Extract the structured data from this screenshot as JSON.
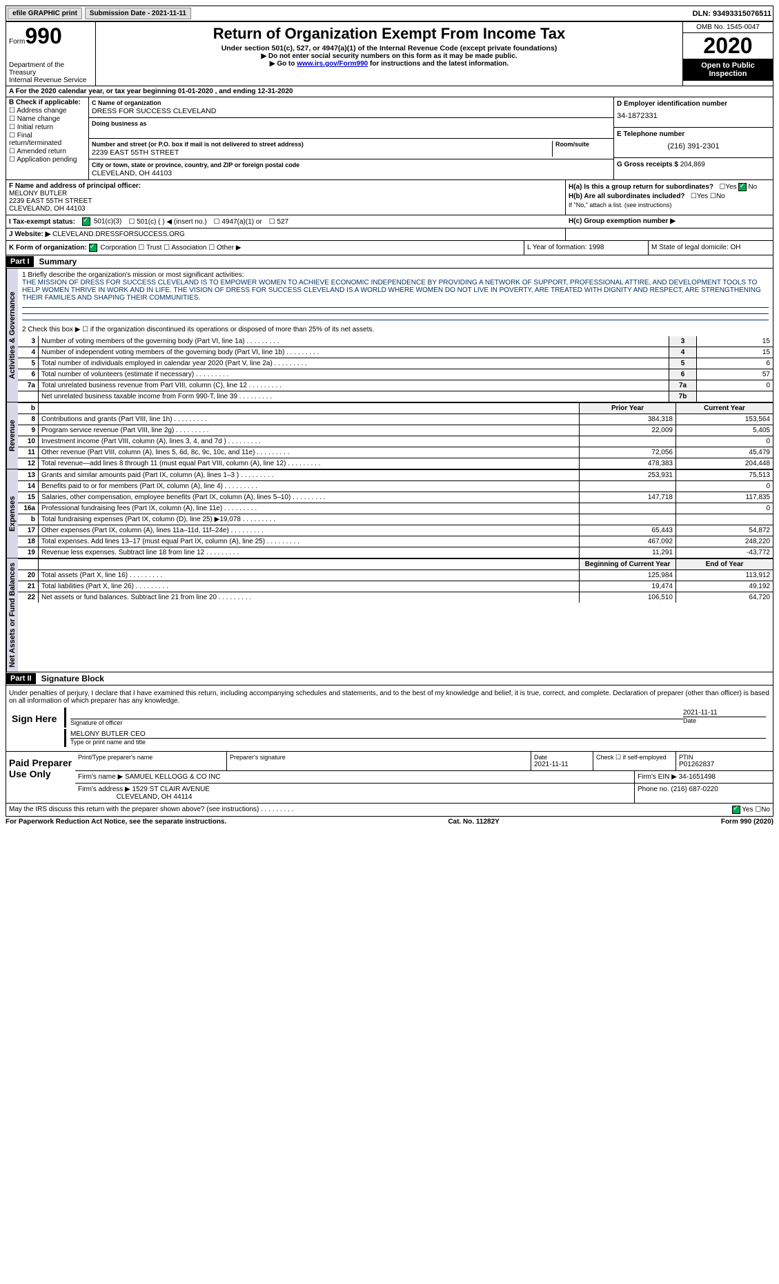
{
  "top": {
    "efile": "efile GRAPHIC print",
    "sub_date_label": "Submission Date - 2021-11-11",
    "dln": "DLN: 93493315076511"
  },
  "header": {
    "form": "Form",
    "form_num": "990",
    "dept": "Department of the Treasury\nInternal Revenue Service",
    "title": "Return of Organization Exempt From Income Tax",
    "sub": "Under section 501(c), 527, or 4947(a)(1) of the Internal Revenue Code (except private foundations)",
    "line1": "▶ Do not enter social security numbers on this form as it may be made public.",
    "line2_pre": "▶ Go to ",
    "line2_link": "www.irs.gov/Form990",
    "line2_post": " for instructions and the latest information.",
    "omb": "OMB No. 1545-0047",
    "year": "2020",
    "open": "Open to Public Inspection"
  },
  "rowA": "A   For the 2020 calendar year, or tax year beginning 01-01-2020   , and ending 12-31-2020",
  "colB": {
    "label": "B Check if applicable:",
    "opts": [
      "Address change",
      "Name change",
      "Initial return",
      "Final return/terminated",
      "Amended return",
      "Application pending"
    ]
  },
  "colC": {
    "name_label": "C Name of organization",
    "name": "DRESS FOR SUCCESS CLEVELAND",
    "dba_label": "Doing business as",
    "dba": "",
    "addr_label": "Number and street (or P.O. box if mail is not delivered to street address)",
    "addr": "2239 EAST 55TH STREET",
    "room_label": "Room/suite",
    "city_label": "City or town, state or province, country, and ZIP or foreign postal code",
    "city": "CLEVELAND, OH  44103"
  },
  "colD": {
    "ein_label": "D Employer identification number",
    "ein": "34-1872331",
    "tel_label": "E Telephone number",
    "tel": "(216) 391-2301",
    "gross_label": "G Gross receipts $",
    "gross": "204,869"
  },
  "colF": {
    "label": "F  Name and address of principal officer:",
    "name": "MELONY BUTLER",
    "addr1": "2239 EAST 55TH STREET",
    "addr2": "CLEVELAND, OH  44103"
  },
  "colH": {
    "ha": "H(a)  Is this a group return for subordinates?",
    "hb": "H(b)  Are all subordinates included?",
    "hb_note": "If \"No,\" attach a list. (see instructions)",
    "hc": "H(c)  Group exemption number ▶",
    "yes": "Yes",
    "no": "No"
  },
  "rowI": {
    "label": "I   Tax-exempt status:",
    "o1": "501(c)(3)",
    "o2": "501(c) (  ) ◀ (insert no.)",
    "o3": "4947(a)(1) or",
    "o4": "527"
  },
  "rowJ": {
    "label": "J   Website: ▶",
    "val": "CLEVELAND.DRESSFORSUCCESS.ORG"
  },
  "rowK": {
    "label": "K Form of organization:",
    "corp": "Corporation",
    "trust": "Trust",
    "assoc": "Association",
    "other": "Other ▶",
    "l": "L Year of formation: 1998",
    "m": "M State of legal domicile: OH"
  },
  "part1": {
    "title": "Part I",
    "sub": "Summary"
  },
  "mission": {
    "line1_label": "1    Briefly describe the organization's mission or most significant activities:",
    "text": "THE MISSION OF DRESS FOR SUCCESS CLEVELAND IS TO EMPOWER WOMEN TO ACHIEVE ECONOMIC INDEPENDENCE BY PROVIDING A NETWORK OF SUPPORT, PROFESSIONAL ATTIRE, AND DEVELOPMENT TOOLS TO HELP WOMEN THRIVE IN WORK AND IN LIFE. THE VISION OF DRESS FOR SUCCESS CLEVELAND IS A WORLD WHERE WOMEN DO NOT LIVE IN POVERTY, ARE TREATED WITH DIGNITY AND RESPECT, ARE STRENGTHENING THEIR FAMILIES AND SHAPING THEIR COMMUNITIES.",
    "line2": "2    Check this box ▶ ☐  if the organization discontinued its operations or disposed of more than 25% of its net assets."
  },
  "govLines": [
    {
      "n": "3",
      "d": "Number of voting members of the governing body (Part VI, line 1a)",
      "r": "3",
      "v": "15"
    },
    {
      "n": "4",
      "d": "Number of independent voting members of the governing body (Part VI, line 1b)",
      "r": "4",
      "v": "15"
    },
    {
      "n": "5",
      "d": "Total number of individuals employed in calendar year 2020 (Part V, line 2a)",
      "r": "5",
      "v": "6"
    },
    {
      "n": "6",
      "d": "Total number of volunteers (estimate if necessary)",
      "r": "6",
      "v": "57"
    },
    {
      "n": "7a",
      "d": "Total unrelated business revenue from Part VIII, column (C), line 12",
      "r": "7a",
      "v": "0"
    },
    {
      "n": "",
      "d": "Net unrelated business taxable income from Form 990-T, line 39",
      "r": "7b",
      "v": ""
    }
  ],
  "revHeader": {
    "b": "b",
    "pv": "Prior Year",
    "cv": "Current Year"
  },
  "revLines": [
    {
      "n": "8",
      "d": "Contributions and grants (Part VIII, line 1h)",
      "pv": "384,318",
      "cv": "153,564"
    },
    {
      "n": "9",
      "d": "Program service revenue (Part VIII, line 2g)",
      "pv": "22,009",
      "cv": "5,405"
    },
    {
      "n": "10",
      "d": "Investment income (Part VIII, column (A), lines 3, 4, and 7d )",
      "pv": "",
      "cv": "0"
    },
    {
      "n": "11",
      "d": "Other revenue (Part VIII, column (A), lines 5, 6d, 8c, 9c, 10c, and 11e)",
      "pv": "72,056",
      "cv": "45,479"
    },
    {
      "n": "12",
      "d": "Total revenue—add lines 8 through 11 (must equal Part VIII, column (A), line 12)",
      "pv": "478,383",
      "cv": "204,448"
    }
  ],
  "expLines": [
    {
      "n": "13",
      "d": "Grants and similar amounts paid (Part IX, column (A), lines 1–3 )",
      "pv": "253,931",
      "cv": "75,513"
    },
    {
      "n": "14",
      "d": "Benefits paid to or for members (Part IX, column (A), line 4)",
      "pv": "",
      "cv": "0"
    },
    {
      "n": "15",
      "d": "Salaries, other compensation, employee benefits (Part IX, column (A), lines 5–10)",
      "pv": "147,718",
      "cv": "117,835"
    },
    {
      "n": "16a",
      "d": "Professional fundraising fees (Part IX, column (A), line 11e)",
      "pv": "",
      "cv": "0"
    },
    {
      "n": "b",
      "d": "Total fundraising expenses (Part IX, column (D), line 25) ▶19,078",
      "pv": "",
      "cv": ""
    },
    {
      "n": "17",
      "d": "Other expenses (Part IX, column (A), lines 11a–11d, 11f–24e)",
      "pv": "65,443",
      "cv": "54,872"
    },
    {
      "n": "18",
      "d": "Total expenses. Add lines 13–17 (must equal Part IX, column (A), line 25)",
      "pv": "467,092",
      "cv": "248,220"
    },
    {
      "n": "19",
      "d": "Revenue less expenses. Subtract line 18 from line 12",
      "pv": "11,291",
      "cv": "-43,772"
    }
  ],
  "naHeader": {
    "pv": "Beginning of Current Year",
    "cv": "End of Year"
  },
  "naLines": [
    {
      "n": "20",
      "d": "Total assets (Part X, line 16)",
      "pv": "125,984",
      "cv": "113,912"
    },
    {
      "n": "21",
      "d": "Total liabilities (Part X, line 26)",
      "pv": "19,474",
      "cv": "49,192"
    },
    {
      "n": "22",
      "d": "Net assets or fund balances. Subtract line 21 from line 20",
      "pv": "106,510",
      "cv": "64,720"
    }
  ],
  "part2": {
    "title": "Part II",
    "sub": "Signature Block"
  },
  "sig": {
    "para": "Under penalties of perjury, I declare that I have examined this return, including accompanying schedules and statements, and to the best of my knowledge and belief, it is true, correct, and complete. Declaration of preparer (other than officer) is based on all information of which preparer has any knowledge.",
    "sign_here": "Sign Here",
    "sig_label": "Signature of officer",
    "date": "2021-11-11",
    "date_label": "Date",
    "name": "MELONY BUTLER CEO",
    "name_label": "Type or print name and title"
  },
  "prep": {
    "label": "Paid Preparer Use Only",
    "h_name": "Print/Type preparer's name",
    "h_sig": "Preparer's signature",
    "h_date": "Date",
    "date": "2021-11-11",
    "h_check": "Check ☐ if self-employed",
    "h_ptin": "PTIN",
    "ptin": "P01262837",
    "firm_label": "Firm's name    ▶",
    "firm": "SAMUEL KELLOGG & CO INC",
    "ein_label": "Firm's EIN ▶",
    "ein": "34-1651498",
    "addr_label": "Firm's address ▶",
    "addr1": "1529 ST CLAIR AVENUE",
    "addr2": "CLEVELAND, OH  44114",
    "phone_label": "Phone no.",
    "phone": "(216) 687-0220"
  },
  "footer": {
    "discuss": "May the IRS discuss this return with the preparer shown above? (see instructions)",
    "yes": "Yes",
    "no": "No",
    "pra": "For Paperwork Reduction Act Notice, see the separate instructions.",
    "cat": "Cat. No. 11282Y",
    "form": "Form 990 (2020)"
  },
  "vlabels": {
    "gov": "Activities & Governance",
    "rev": "Revenue",
    "exp": "Expenses",
    "na": "Net Assets or Fund Balances"
  }
}
